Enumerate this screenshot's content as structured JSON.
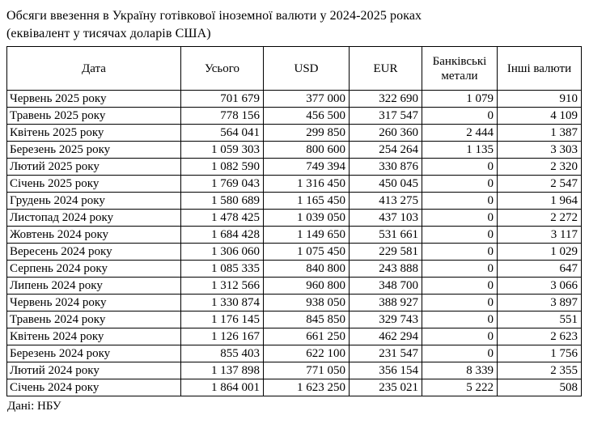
{
  "page": {
    "title_line1": "Обсяги ввезення в Україну готівкової іноземної валюти у 2024-2025 роках",
    "title_line2": "(еквівалент у тисячах доларів США)",
    "source": "Дані: НБУ"
  },
  "table": {
    "columns": [
      "Дата",
      "Усього",
      "USD",
      "EUR",
      "Банківські метали",
      "Інші валюти"
    ],
    "rows": [
      {
        "date": "Червень 2025 року",
        "total": "701 679",
        "usd": "377 000",
        "eur": "322 690",
        "metals": "1 079",
        "other": "910"
      },
      {
        "date": "Травень 2025 року",
        "total": "778 156",
        "usd": "456 500",
        "eur": "317 547",
        "metals": "0",
        "other": "4 109"
      },
      {
        "date": "Квітень 2025 року",
        "total": "564 041",
        "usd": "299 850",
        "eur": "260 360",
        "metals": "2 444",
        "other": "1 387"
      },
      {
        "date": "Березень 2025 року",
        "total": "1 059 303",
        "usd": "800 600",
        "eur": "254 264",
        "metals": "1 135",
        "other": "3 303"
      },
      {
        "date": "Лютий 2025 року",
        "total": "1 082 590",
        "usd": "749 394",
        "eur": "330 876",
        "metals": "0",
        "other": "2 320"
      },
      {
        "date": "Січень 2025 року",
        "total": "1 769 043",
        "usd": "1 316 450",
        "eur": "450 045",
        "metals": "0",
        "other": "2 547"
      },
      {
        "date": "Грудень 2024 року",
        "total": "1 580 689",
        "usd": "1 165 450",
        "eur": "413 275",
        "metals": "0",
        "other": "1 964"
      },
      {
        "date": "Листопад 2024 року",
        "total": "1 478 425",
        "usd": "1 039 050",
        "eur": "437 103",
        "metals": "0",
        "other": "2 272"
      },
      {
        "date": "Жовтень 2024 року",
        "total": "1 684 428",
        "usd": "1 149 650",
        "eur": "531 661",
        "metals": "0",
        "other": "3 117"
      },
      {
        "date": "Вересень 2024 року",
        "total": "1 306 060",
        "usd": "1 075 450",
        "eur": "229 581",
        "metals": "0",
        "other": "1 029"
      },
      {
        "date": "Серпень 2024 року",
        "total": "1 085 335",
        "usd": "840 800",
        "eur": "243 888",
        "metals": "0",
        "other": "647"
      },
      {
        "date": "Липень 2024 року",
        "total": "1 312 566",
        "usd": "960 800",
        "eur": "348 700",
        "metals": "0",
        "other": "3 066"
      },
      {
        "date": "Червень 2024 року",
        "total": "1 330 874",
        "usd": "938 050",
        "eur": "388 927",
        "metals": "0",
        "other": "3 897"
      },
      {
        "date": "Травень 2024 року",
        "total": "1 176 145",
        "usd": "845 850",
        "eur": "329 743",
        "metals": "0",
        "other": "551"
      },
      {
        "date": "Квітень 2024 року",
        "total": "1 126 167",
        "usd": "661 250",
        "eur": "462 294",
        "metals": "0",
        "other": "2 623"
      },
      {
        "date": "Березень 2024 року",
        "total": "855 403",
        "usd": "622 100",
        "eur": "231 547",
        "metals": "0",
        "other": "1 756"
      },
      {
        "date": "Лютий 2024 року",
        "total": "1 137 898",
        "usd": "771 050",
        "eur": "356 154",
        "metals": "8 339",
        "other": "2 355"
      },
      {
        "date": "Січень 2024 року",
        "total": "1 864 001",
        "usd": "1 623 250",
        "eur": "235 021",
        "metals": "5 222",
        "other": "508"
      }
    ]
  },
  "chart_data": {
    "type": "table",
    "title": "Обсяги ввезення в Україну готівкової іноземної валюти у 2024-2025 роках (еквівалент у тисячах доларів США)",
    "columns": [
      "Дата",
      "Усього",
      "USD",
      "EUR",
      "Банківські метали",
      "Інші валюти"
    ],
    "rows": [
      [
        "Червень 2025 року",
        701679,
        377000,
        322690,
        1079,
        910
      ],
      [
        "Травень 2025 року",
        778156,
        456500,
        317547,
        0,
        4109
      ],
      [
        "Квітень 2025 року",
        564041,
        299850,
        260360,
        2444,
        1387
      ],
      [
        "Березень 2025 року",
        1059303,
        800600,
        254264,
        1135,
        3303
      ],
      [
        "Лютий 2025 року",
        1082590,
        749394,
        330876,
        0,
        2320
      ],
      [
        "Січень 2025 року",
        1769043,
        1316450,
        450045,
        0,
        2547
      ],
      [
        "Грудень 2024 року",
        1580689,
        1165450,
        413275,
        0,
        1964
      ],
      [
        "Листопад 2024 року",
        1478425,
        1039050,
        437103,
        0,
        2272
      ],
      [
        "Жовтень 2024 року",
        1684428,
        1149650,
        531661,
        0,
        3117
      ],
      [
        "Вересень 2024 року",
        1306060,
        1075450,
        229581,
        0,
        1029
      ],
      [
        "Серпень 2024 року",
        1085335,
        840800,
        243888,
        0,
        647
      ],
      [
        "Липень 2024 року",
        1312566,
        960800,
        348700,
        0,
        3066
      ],
      [
        "Червень 2024 року",
        1330874,
        938050,
        388927,
        0,
        3897
      ],
      [
        "Травень 2024 року",
        1176145,
        845850,
        329743,
        0,
        551
      ],
      [
        "Квітень 2024 року",
        1126167,
        661250,
        462294,
        0,
        2623
      ],
      [
        "Березень 2024 року",
        855403,
        622100,
        231547,
        0,
        1756
      ],
      [
        "Лютий 2024 року",
        1137898,
        771050,
        356154,
        8339,
        2355
      ],
      [
        "Січень 2024 року",
        1864001,
        1623250,
        235021,
        5222,
        508
      ]
    ],
    "units": "тисячі доларів США",
    "source": "Дані: НБУ"
  }
}
